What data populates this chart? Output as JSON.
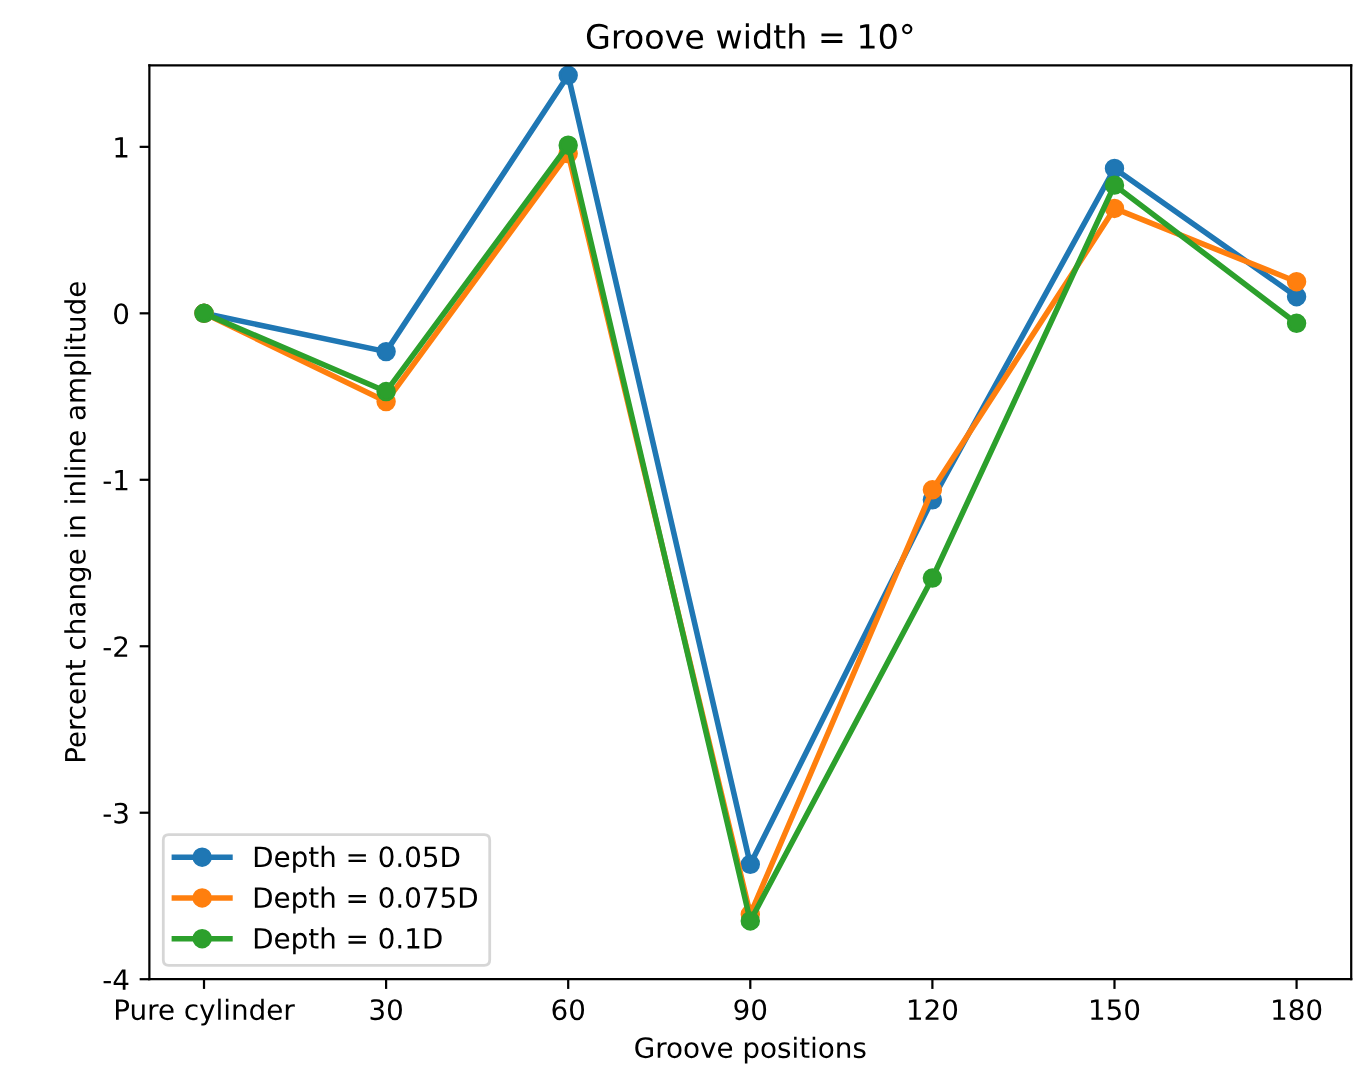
{
  "chart_data": {
    "type": "line",
    "title": "Groove width = 10°",
    "xlabel": "Groove positions",
    "ylabel": "Percent change in inline amplitude",
    "categories": [
      "Pure cylinder",
      "30",
      "60",
      "90",
      "120",
      "150",
      "180"
    ],
    "series": [
      {
        "name": "Depth = 0.05D",
        "color": "#1f77b4",
        "values": [
          0,
          -0.23,
          1.43,
          -3.31,
          -1.12,
          0.87,
          0.1
        ]
      },
      {
        "name": "Depth = 0.075D",
        "color": "#ff7f0e",
        "values": [
          0,
          -0.53,
          0.96,
          -3.61,
          -1.06,
          0.63,
          0.19
        ]
      },
      {
        "name": "Depth = 0.1D",
        "color": "#2ca02c",
        "values": [
          0,
          -0.47,
          1.01,
          -3.65,
          -1.59,
          0.77,
          -0.06
        ]
      }
    ],
    "ylim": [
      -4,
      1.49
    ],
    "yticks": [
      -4,
      -3,
      -2,
      -1,
      0,
      1
    ],
    "marker": "circle",
    "line_style": "solid",
    "grid": false,
    "legend": "bottom left"
  }
}
